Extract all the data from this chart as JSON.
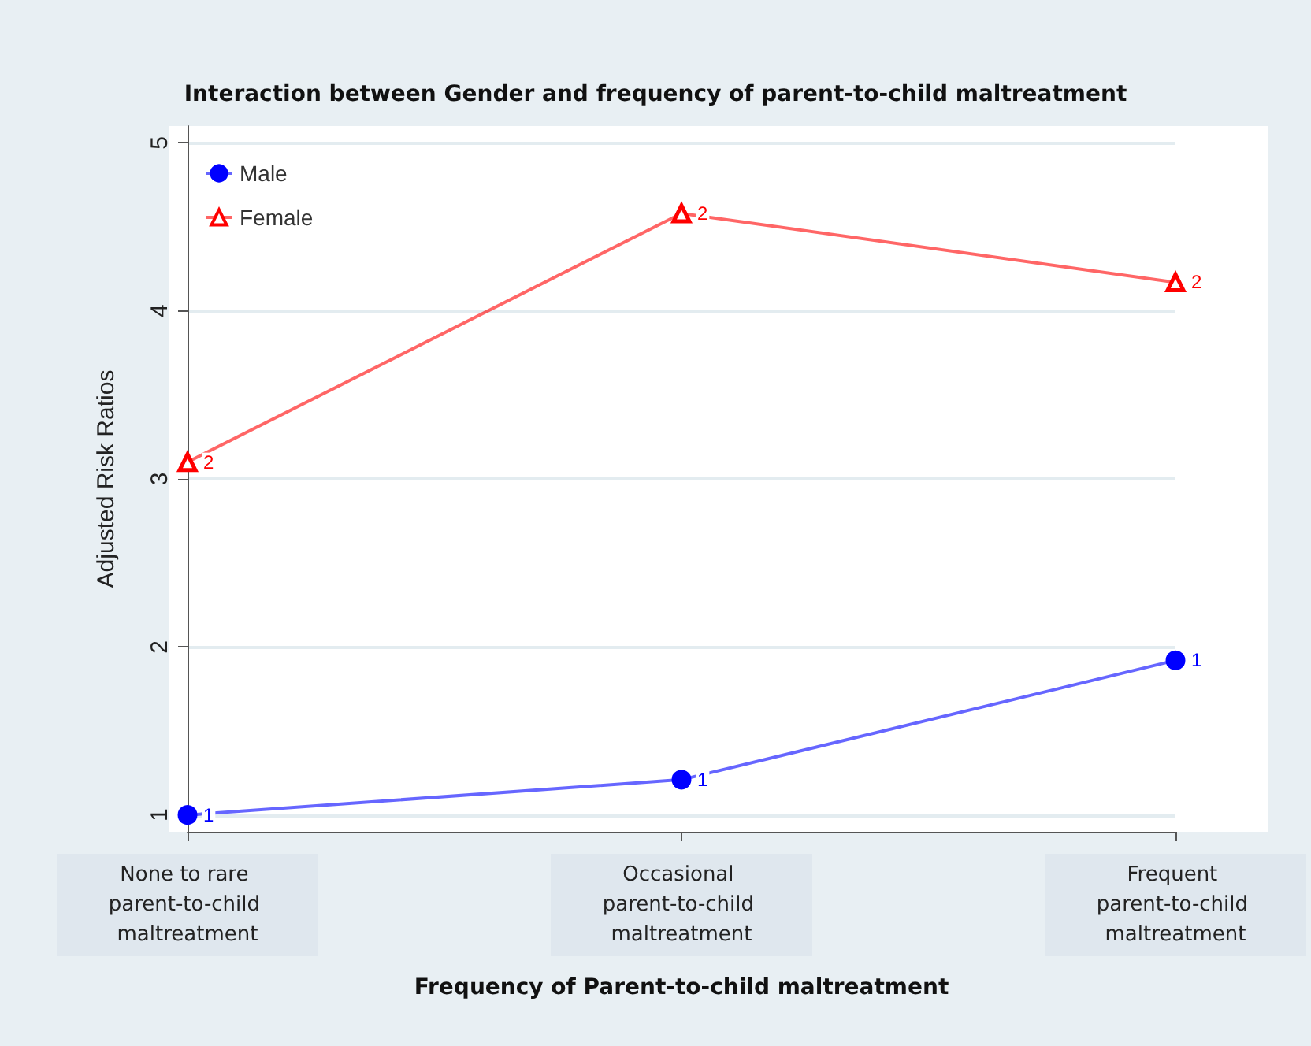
{
  "chart_data": {
    "type": "line",
    "title": "Interaction between Gender and frequency of parent-to-child maltreatment",
    "xlabel": "Frequency of Parent-to-child maltreatment",
    "ylabel": "Adjusted Risk Ratios",
    "categories": [
      "None to rare parent-to-child maltreatment",
      "Occasional parent-to-child maltreatment",
      "Frequent parent-to-child maltreatment"
    ],
    "series": [
      {
        "name": "Male",
        "color": "#0000ff",
        "marker": "circle",
        "values": [
          1.0,
          1.21,
          1.92
        ]
      },
      {
        "name": "Female",
        "color": "#ff0000",
        "marker": "triangle",
        "values": [
          3.1,
          4.58,
          4.17
        ]
      }
    ],
    "annotations": [
      {
        "text": "1",
        "x": "None to rare parent-to-child maltreatment",
        "y": 1.0
      },
      {
        "text": "1",
        "x": "Occasional parent-to-child maltreatment",
        "y": 1.21
      },
      {
        "text": "1",
        "x": "Frequent parent-to-child maltreatment",
        "y": 1.92
      },
      {
        "text": "2",
        "x": "None to rare parent-to-child maltreatment",
        "y": 3.1
      },
      {
        "text": "2",
        "x": "Occasional parent-to-child maltreatment",
        "y": 4.58
      },
      {
        "text": "2",
        "x": "Frequent parent-to-child maltreatment",
        "y": 4.17
      }
    ],
    "ylim": [
      0.9,
      5.1
    ],
    "yticks": [
      1,
      2,
      3,
      4,
      5
    ],
    "grid": "y",
    "legend": "top left"
  }
}
